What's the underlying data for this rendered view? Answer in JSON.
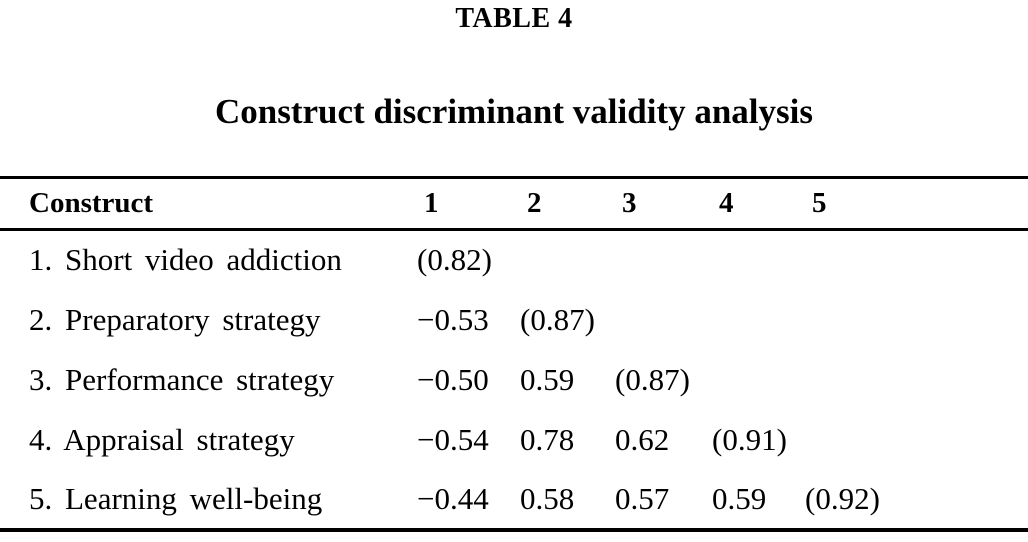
{
  "table_label": "TABLE 4",
  "table_title": "Construct discriminant validity analysis",
  "table": {
    "header": {
      "construct": "Construct",
      "col1": "1",
      "col2": "2",
      "col3": "3",
      "col4": "4",
      "col5": "5"
    },
    "rows": [
      {
        "label": "1. Short video addiction",
        "values": [
          "(0.82)",
          "",
          "",
          "",
          ""
        ]
      },
      {
        "label": "2. Preparatory strategy",
        "values": [
          "−0.53",
          "(0.87)",
          "",
          "",
          ""
        ]
      },
      {
        "label": "3. Performance strategy",
        "values": [
          "−0.50",
          "0.59",
          "(0.87)",
          "",
          ""
        ]
      },
      {
        "label": "4. Appraisal strategy",
        "values": [
          "−0.54",
          "0.78",
          "0.62",
          "(0.91)",
          ""
        ]
      },
      {
        "label": "5. Learning well-being",
        "values": [
          "−0.44",
          "0.58",
          "0.57",
          "0.59",
          "(0.92)"
        ]
      }
    ]
  },
  "colors": {
    "text": "#000000",
    "background": "#ffffff",
    "rule": "#000000"
  }
}
